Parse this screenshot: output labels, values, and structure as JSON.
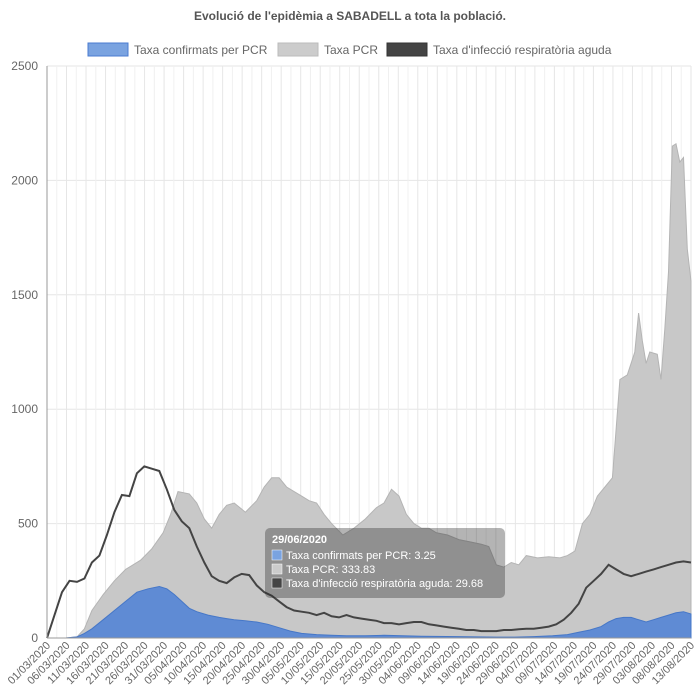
{
  "chart_data": {
    "type": "area",
    "title": "Evolució de l'epidèmia a SABADELL a tota la població.",
    "ylim": [
      0,
      2500
    ],
    "yticks": [
      "0",
      "500",
      "1000",
      "1500",
      "2000",
      "2500"
    ],
    "ytick_values": [
      0,
      500,
      1000,
      1500,
      2000,
      2500
    ],
    "grid": true,
    "legend_placement": "top",
    "xticks": [
      "01/03/2020",
      "06/03/2020",
      "11/03/2020",
      "16/03/2020",
      "21/03/2020",
      "26/03/2020",
      "31/03/2020",
      "05/04/2020",
      "10/04/2020",
      "15/04/2020",
      "20/04/2020",
      "25/04/2020",
      "30/04/2020",
      "05/05/2020",
      "10/05/2020",
      "15/05/2020",
      "20/05/2020",
      "25/05/2020",
      "30/05/2020",
      "04/06/2020",
      "09/06/2020",
      "14/06/2020",
      "19/06/2020",
      "24/06/2020",
      "29/06/2020",
      "04/07/2020",
      "09/07/2020",
      "14/07/2020",
      "19/07/2020",
      "24/07/2020",
      "29/07/2020",
      "03/08/2020",
      "08/08/2020",
      "13/08/2020"
    ],
    "x_day_range": [
      0,
      165
    ],
    "series": [
      {
        "name": "Taxa PCR",
        "color": "#c8c8c8",
        "points": [
          [
            0,
            0
          ],
          [
            5,
            0
          ],
          [
            8,
            5
          ],
          [
            10,
            40
          ],
          [
            12,
            120
          ],
          [
            15,
            190
          ],
          [
            18,
            250
          ],
          [
            21,
            300
          ],
          [
            25,
            340
          ],
          [
            28,
            390
          ],
          [
            31,
            460
          ],
          [
            33,
            540
          ],
          [
            35,
            640
          ],
          [
            38,
            630
          ],
          [
            40,
            590
          ],
          [
            42,
            520
          ],
          [
            44,
            480
          ],
          [
            46,
            540
          ],
          [
            48,
            580
          ],
          [
            50,
            590
          ],
          [
            53,
            550
          ],
          [
            56,
            600
          ],
          [
            58,
            660
          ],
          [
            60,
            700
          ],
          [
            62,
            700
          ],
          [
            64,
            660
          ],
          [
            66,
            640
          ],
          [
            68,
            620
          ],
          [
            70,
            600
          ],
          [
            72,
            590
          ],
          [
            74,
            540
          ],
          [
            76,
            500
          ],
          [
            79,
            450
          ],
          [
            82,
            480
          ],
          [
            85,
            520
          ],
          [
            88,
            570
          ],
          [
            90,
            590
          ],
          [
            92,
            650
          ],
          [
            94,
            620
          ],
          [
            96,
            540
          ],
          [
            98,
            500
          ],
          [
            100,
            480
          ],
          [
            102,
            480
          ],
          [
            104,
            460
          ],
          [
            107,
            450
          ],
          [
            110,
            430
          ],
          [
            113,
            420
          ],
          [
            116,
            410
          ],
          [
            118,
            400
          ],
          [
            120,
            320
          ],
          [
            122,
            310
          ],
          [
            124,
            330
          ],
          [
            126,
            320
          ],
          [
            128,
            360
          ],
          [
            131,
            350
          ],
          [
            134,
            355
          ],
          [
            137,
            350
          ],
          [
            139,
            360
          ],
          [
            141,
            380
          ],
          [
            143,
            500
          ],
          [
            145,
            540
          ],
          [
            147,
            620
          ],
          [
            149,
            660
          ],
          [
            151,
            700
          ],
          [
            153,
            1130
          ],
          [
            155,
            1150
          ],
          [
            157,
            1250
          ],
          [
            158,
            1420
          ],
          [
            159,
            1300
          ],
          [
            160,
            1200
          ],
          [
            161,
            1250
          ],
          [
            163,
            1240
          ],
          [
            164,
            1130
          ],
          [
            165,
            1350
          ],
          [
            166,
            1600
          ],
          [
            167,
            2150
          ],
          [
            168,
            2160
          ],
          [
            169,
            2080
          ],
          [
            170,
            2100
          ],
          [
            171,
            1700
          ],
          [
            172,
            1560
          ]
        ]
      },
      {
        "name": "Taxa confirmats per PCR",
        "color": "#6d96d8",
        "points": [
          [
            0,
            0
          ],
          [
            5,
            0
          ],
          [
            8,
            5
          ],
          [
            10,
            20
          ],
          [
            12,
            40
          ],
          [
            15,
            80
          ],
          [
            18,
            120
          ],
          [
            21,
            160
          ],
          [
            24,
            200
          ],
          [
            27,
            215
          ],
          [
            30,
            225
          ],
          [
            32,
            215
          ],
          [
            34,
            190
          ],
          [
            36,
            160
          ],
          [
            38,
            130
          ],
          [
            40,
            115
          ],
          [
            43,
            100
          ],
          [
            46,
            90
          ],
          [
            48,
            85
          ],
          [
            50,
            80
          ],
          [
            53,
            75
          ],
          [
            56,
            70
          ],
          [
            59,
            60
          ],
          [
            62,
            45
          ],
          [
            65,
            30
          ],
          [
            68,
            20
          ],
          [
            72,
            15
          ],
          [
            76,
            12
          ],
          [
            80,
            10
          ],
          [
            85,
            10
          ],
          [
            90,
            12
          ],
          [
            95,
            10
          ],
          [
            100,
            8
          ],
          [
            110,
            6
          ],
          [
            120,
            4
          ],
          [
            125,
            4
          ],
          [
            130,
            6
          ],
          [
            135,
            10
          ],
          [
            139,
            15
          ],
          [
            142,
            25
          ],
          [
            145,
            35
          ],
          [
            148,
            50
          ],
          [
            150,
            70
          ],
          [
            152,
            85
          ],
          [
            154,
            90
          ],
          [
            156,
            90
          ],
          [
            158,
            80
          ],
          [
            160,
            70
          ],
          [
            162,
            80
          ],
          [
            164,
            90
          ],
          [
            166,
            100
          ],
          [
            168,
            110
          ],
          [
            170,
            115
          ],
          [
            172,
            105
          ]
        ]
      },
      {
        "name": "Taxa d'infecció respiratòria aguda",
        "color": "#444444",
        "points": [
          [
            0,
            0
          ],
          [
            2,
            100
          ],
          [
            4,
            200
          ],
          [
            6,
            250
          ],
          [
            8,
            245
          ],
          [
            10,
            260
          ],
          [
            12,
            330
          ],
          [
            14,
            360
          ],
          [
            16,
            450
          ],
          [
            18,
            550
          ],
          [
            20,
            625
          ],
          [
            22,
            620
          ],
          [
            24,
            720
          ],
          [
            26,
            750
          ],
          [
            28,
            740
          ],
          [
            30,
            730
          ],
          [
            32,
            650
          ],
          [
            34,
            560
          ],
          [
            36,
            510
          ],
          [
            38,
            480
          ],
          [
            40,
            400
          ],
          [
            42,
            330
          ],
          [
            44,
            270
          ],
          [
            46,
            250
          ],
          [
            48,
            240
          ],
          [
            50,
            265
          ],
          [
            52,
            280
          ],
          [
            54,
            275
          ],
          [
            56,
            230
          ],
          [
            58,
            200
          ],
          [
            60,
            185
          ],
          [
            62,
            160
          ],
          [
            64,
            135
          ],
          [
            66,
            120
          ],
          [
            68,
            115
          ],
          [
            70,
            110
          ],
          [
            72,
            100
          ],
          [
            74,
            110
          ],
          [
            76,
            95
          ],
          [
            78,
            90
          ],
          [
            80,
            100
          ],
          [
            82,
            90
          ],
          [
            84,
            85
          ],
          [
            86,
            80
          ],
          [
            88,
            75
          ],
          [
            90,
            65
          ],
          [
            92,
            65
          ],
          [
            94,
            60
          ],
          [
            96,
            65
          ],
          [
            98,
            70
          ],
          [
            100,
            70
          ],
          [
            102,
            60
          ],
          [
            104,
            55
          ],
          [
            106,
            50
          ],
          [
            108,
            45
          ],
          [
            110,
            40
          ],
          [
            112,
            35
          ],
          [
            114,
            35
          ],
          [
            116,
            30
          ],
          [
            118,
            30
          ],
          [
            120,
            30
          ],
          [
            122,
            35
          ],
          [
            124,
            35
          ],
          [
            126,
            38
          ],
          [
            128,
            40
          ],
          [
            130,
            40
          ],
          [
            132,
            45
          ],
          [
            134,
            50
          ],
          [
            136,
            60
          ],
          [
            138,
            80
          ],
          [
            140,
            110
          ],
          [
            142,
            150
          ],
          [
            144,
            220
          ],
          [
            146,
            250
          ],
          [
            148,
            280
          ],
          [
            150,
            320
          ],
          [
            152,
            300
          ],
          [
            154,
            280
          ],
          [
            156,
            270
          ],
          [
            158,
            280
          ],
          [
            160,
            290
          ],
          [
            162,
            300
          ],
          [
            164,
            310
          ],
          [
            166,
            320
          ],
          [
            168,
            330
          ],
          [
            170,
            335
          ],
          [
            172,
            330
          ]
        ]
      }
    ],
    "legend": [
      {
        "name": "Taxa confirmats per PCR",
        "fill": "#7aa3e0",
        "stroke": "#4a7bd0"
      },
      {
        "name": "Taxa PCR",
        "fill": "#cccccc",
        "stroke": "#bbbbbb"
      },
      {
        "name": "Taxa d'infecció respiratòria aguda",
        "fill": "#444444",
        "stroke": "#333333"
      }
    ],
    "tooltip": {
      "title": "29/06/2020",
      "lines": [
        "Taxa confirmats per PCR: 3.25",
        "Taxa PCR: 333.83",
        "Taxa d'infecció respiratòria aguda: 29.68"
      ]
    }
  }
}
